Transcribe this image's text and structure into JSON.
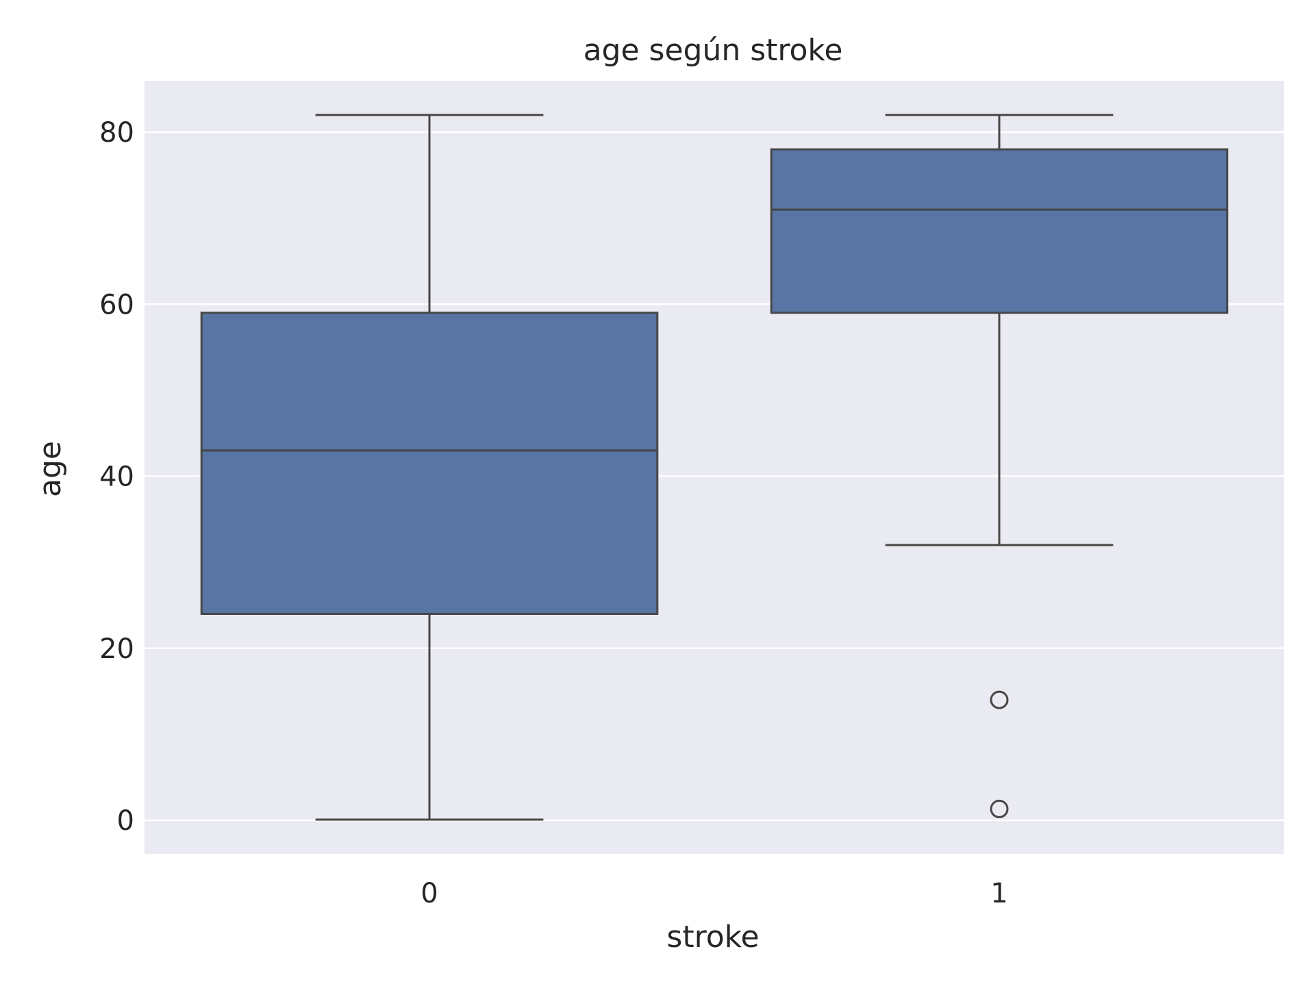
{
  "chart_data": {
    "type": "box",
    "title": "age según stroke",
    "xlabel": "stroke",
    "ylabel": "age",
    "categories": [
      "0",
      "1"
    ],
    "yticks": [
      "0",
      "20",
      "40",
      "60",
      "80"
    ],
    "ylim": [
      -4,
      86
    ],
    "grid": true,
    "boxes": [
      {
        "category": "0",
        "whisker_low": 0.08,
        "q1": 24,
        "median": 43,
        "q3": 59,
        "whisker_high": 82,
        "outliers": []
      },
      {
        "category": "1",
        "whisker_low": 32,
        "q1": 59,
        "median": 71,
        "q3": 78,
        "whisker_high": 82,
        "outliers": [
          14,
          1.32
        ]
      }
    ],
    "colors": {
      "box_fill": "#5875a4",
      "line": "#464646",
      "background": "#eaeaf2",
      "grid": "#ffffff"
    }
  }
}
